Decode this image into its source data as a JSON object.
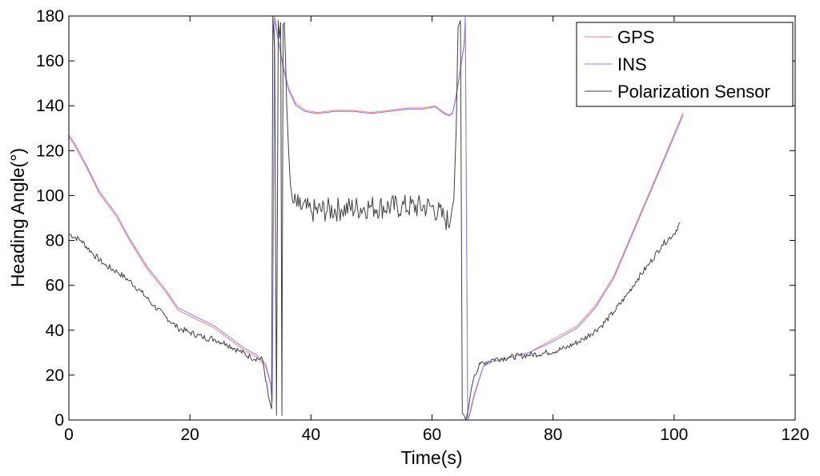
{
  "chart_data": {
    "type": "line",
    "xlabel": "Time(s)",
    "ylabel": "Heading Angle(°)",
    "xlim": [
      0,
      120
    ],
    "ylim": [
      0,
      180
    ],
    "xticks": [
      "0",
      "20",
      "40",
      "60",
      "80",
      "100",
      "120"
    ],
    "yticks": [
      "0",
      "20",
      "40",
      "60",
      "80",
      "100",
      "120",
      "140",
      "160",
      "180"
    ],
    "grid": false,
    "legend_position": "top-right",
    "series": [
      {
        "name": "GPS",
        "color": "#ff7f7f",
        "x": [
          0,
          1,
          3,
          5,
          8,
          10,
          13,
          16,
          18,
          21,
          24,
          26,
          29,
          31,
          32.5,
          33.3,
          33.6,
          34,
          34.6,
          35.4,
          36.3,
          37.5,
          39,
          41,
          44,
          47,
          50,
          53,
          56,
          58.5,
          60.5,
          62,
          62.8,
          63.4,
          64,
          64.7,
          65.3,
          65.5,
          65.9,
          66.2,
          67,
          68.5,
          70,
          73,
          76,
          80,
          84,
          87,
          90,
          93,
          96,
          99,
          101.5
        ],
        "y": [
          126,
          122,
          112,
          101,
          90,
          80,
          67,
          57,
          49,
          45,
          41,
          37,
          31,
          28,
          24,
          16,
          8,
          180,
          170,
          158,
          148,
          141,
          138,
          137,
          138,
          138,
          137,
          138,
          139,
          139,
          140,
          137,
          136,
          137,
          145,
          157,
          168,
          180,
          0,
          3,
          12,
          24,
          26,
          28,
          30,
          36,
          42,
          51,
          64,
          83,
          102,
          121,
          137
        ]
      },
      {
        "name": "INS",
        "color": "#7f7fff",
        "x": [
          0,
          1,
          3,
          5,
          8,
          10,
          13,
          16,
          18,
          21,
          24,
          26,
          29,
          31,
          32.5,
          33.3,
          33.6,
          34,
          34.6,
          35.4,
          36.3,
          37.5,
          39,
          41,
          44,
          47,
          50,
          53,
          56,
          58.5,
          60.5,
          62,
          62.8,
          63.4,
          64,
          64.7,
          65.3,
          65.5,
          65.9,
          66.2,
          67,
          68.5,
          70,
          73,
          76,
          80,
          84,
          87,
          90,
          93,
          96,
          99,
          101.5
        ],
        "y": [
          127,
          123,
          113,
          102,
          91,
          81,
          68,
          58,
          50,
          46,
          42,
          38,
          32,
          29,
          25,
          17,
          9,
          179,
          169,
          157,
          147,
          140,
          137.5,
          136.5,
          137.5,
          137.5,
          136.5,
          137.5,
          138.5,
          138.5,
          139.5,
          136.5,
          135.5,
          136.5,
          144,
          156,
          167,
          179,
          0,
          2,
          11,
          24,
          26,
          28,
          30,
          35,
          41,
          50,
          63,
          82,
          101,
          120,
          136
        ]
      },
      {
        "name": "Polarization Sensor",
        "color": "#404040",
        "noisy": true,
        "x": [
          0,
          2,
          4,
          6,
          8,
          10,
          12,
          14,
          16,
          18,
          20,
          22,
          24,
          26,
          28,
          30,
          32,
          33,
          33.5,
          33.7,
          34,
          34.3,
          34.6,
          34.8,
          35,
          35.2,
          35.4,
          35.6,
          35.8,
          36,
          36.3,
          36.6,
          37,
          38,
          40,
          45,
          50,
          55,
          60,
          62,
          63,
          63.3,
          63.6,
          64,
          64.3,
          64.7,
          65,
          65.3,
          65.6,
          66,
          66.5,
          67,
          68,
          70,
          73,
          76,
          79,
          82,
          85,
          88,
          90,
          92,
          94,
          96,
          98,
          100,
          101
        ],
        "y": [
          83,
          80,
          74,
          69,
          66,
          62,
          57,
          51,
          46,
          41,
          39,
          37,
          36,
          34,
          31,
          28,
          27,
          10,
          5,
          180,
          165,
          2,
          178,
          170,
          177,
          2,
          176,
          177,
          160,
          140,
          120,
          105,
          97,
          95,
          93,
          94,
          95,
          95,
          95,
          90,
          88,
          94,
          98,
          130,
          175,
          178,
          3,
          2,
          0,
          5,
          14,
          20,
          25,
          27,
          28,
          29,
          30,
          32,
          36,
          42,
          48,
          55,
          63,
          70,
          78,
          83,
          88
        ]
      }
    ]
  }
}
